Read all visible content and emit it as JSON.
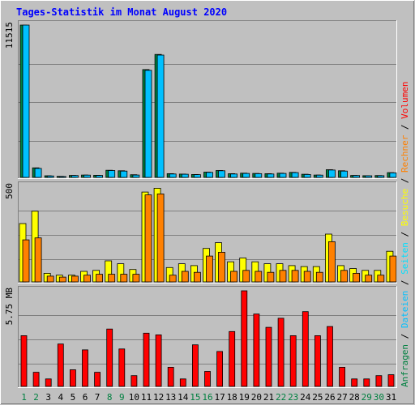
{
  "title": "Tages-Statistik im Monat August 2020",
  "colors": {
    "background": "#c0c0c0",
    "title": "#0000ff",
    "grid": "#808080",
    "anfragen": "#008040",
    "dateien": "#00c0ff",
    "seiten": "#00e0ff",
    "besuche": "#ffff00",
    "rechner": "#ff8000",
    "volumen": "#ff0000",
    "day_weekday": "#000000",
    "day_weekend": "#008040"
  },
  "right_legend": {
    "p1": [
      {
        "text": "Anfragen",
        "color": "anfragen"
      },
      {
        "text": " / ",
        "color": "day_weekday"
      },
      {
        "text": "Dateien",
        "color": "dateien"
      },
      {
        "text": " / ",
        "color": "day_weekday"
      },
      {
        "text": "Seiten",
        "color": "seiten"
      },
      {
        "text": " / ",
        "color": "day_weekday"
      },
      {
        "text": "Besuche",
        "color": "besuche"
      },
      {
        "text": " / ",
        "color": "day_weekday"
      },
      {
        "text": "Rechner",
        "color": "rechner"
      },
      {
        "text": " / ",
        "color": "day_weekday"
      },
      {
        "text": "Volumen",
        "color": "volumen"
      }
    ]
  },
  "chart_data": [
    {
      "type": "bar",
      "panel": "requests",
      "ymax_label": "11515",
      "ylim": [
        0,
        11515
      ],
      "categories": [
        "1",
        "2",
        "3",
        "4",
        "5",
        "6",
        "7",
        "8",
        "9",
        "10",
        "11",
        "12",
        "13",
        "14",
        "15",
        "16",
        "17",
        "18",
        "19",
        "20",
        "21",
        "22",
        "23",
        "24",
        "25",
        "26",
        "27",
        "28",
        "29",
        "30",
        "31"
      ],
      "weekend_days": [
        "1",
        "2",
        "8",
        "9",
        "15",
        "16",
        "22",
        "23",
        "29",
        "30"
      ],
      "series": [
        {
          "name": "Anfragen",
          "values": [
            11515,
            720,
            120,
            80,
            150,
            180,
            160,
            540,
            500,
            200,
            8150,
            9300,
            280,
            250,
            220,
            400,
            520,
            280,
            320,
            300,
            280,
            320,
            380,
            240,
            180,
            580,
            500,
            150,
            130,
            140,
            360
          ]
        },
        {
          "name": "Dateien",
          "values": [
            11515,
            680,
            110,
            70,
            140,
            170,
            150,
            520,
            480,
            180,
            8100,
            9250,
            260,
            240,
            210,
            380,
            500,
            260,
            300,
            280,
            260,
            300,
            360,
            220,
            170,
            560,
            480,
            140,
            120,
            130,
            340
          ]
        }
      ]
    },
    {
      "type": "bar",
      "panel": "visits",
      "ymax_label": "500",
      "ylim": [
        0,
        500
      ],
      "categories": [
        "1",
        "2",
        "3",
        "4",
        "5",
        "6",
        "7",
        "8",
        "9",
        "10",
        "11",
        "12",
        "13",
        "14",
        "15",
        "16",
        "17",
        "18",
        "19",
        "20",
        "21",
        "22",
        "23",
        "24",
        "25",
        "26",
        "27",
        "28",
        "29",
        "30",
        "31"
      ],
      "series": [
        {
          "name": "Besuche",
          "values": [
            305,
            370,
            45,
            35,
            35,
            55,
            60,
            110,
            95,
            65,
            470,
            490,
            75,
            95,
            85,
            175,
            205,
            105,
            125,
            105,
            95,
            95,
            85,
            80,
            80,
            250,
            85,
            70,
            60,
            60,
            160
          ]
        },
        {
          "name": "Rechner",
          "values": [
            220,
            230,
            30,
            25,
            30,
            35,
            40,
            40,
            40,
            40,
            455,
            460,
            35,
            55,
            50,
            135,
            155,
            55,
            60,
            55,
            50,
            60,
            60,
            55,
            50,
            210,
            60,
            45,
            35,
            35,
            135
          ]
        }
      ]
    },
    {
      "type": "bar",
      "panel": "volume",
      "ymax_label": "5.75 MB",
      "ylim": [
        0,
        5.75
      ],
      "categories": [
        "1",
        "2",
        "3",
        "4",
        "5",
        "6",
        "7",
        "8",
        "9",
        "10",
        "11",
        "12",
        "13",
        "14",
        "15",
        "16",
        "17",
        "18",
        "19",
        "20",
        "21",
        "22",
        "23",
        "24",
        "25",
        "26",
        "27",
        "28",
        "29",
        "30",
        "31"
      ],
      "series": [
        {
          "name": "Volumen",
          "values": [
            3.05,
            0.85,
            0.45,
            2.55,
            1.0,
            2.2,
            0.85,
            3.45,
            2.25,
            0.65,
            3.2,
            3.1,
            1.15,
            0.45,
            2.5,
            0.9,
            2.1,
            3.3,
            5.75,
            4.35,
            3.55,
            4.1,
            3.05,
            4.5,
            3.05,
            3.6,
            1.15,
            0.45,
            0.45,
            0.65,
            0.7
          ]
        }
      ]
    }
  ]
}
